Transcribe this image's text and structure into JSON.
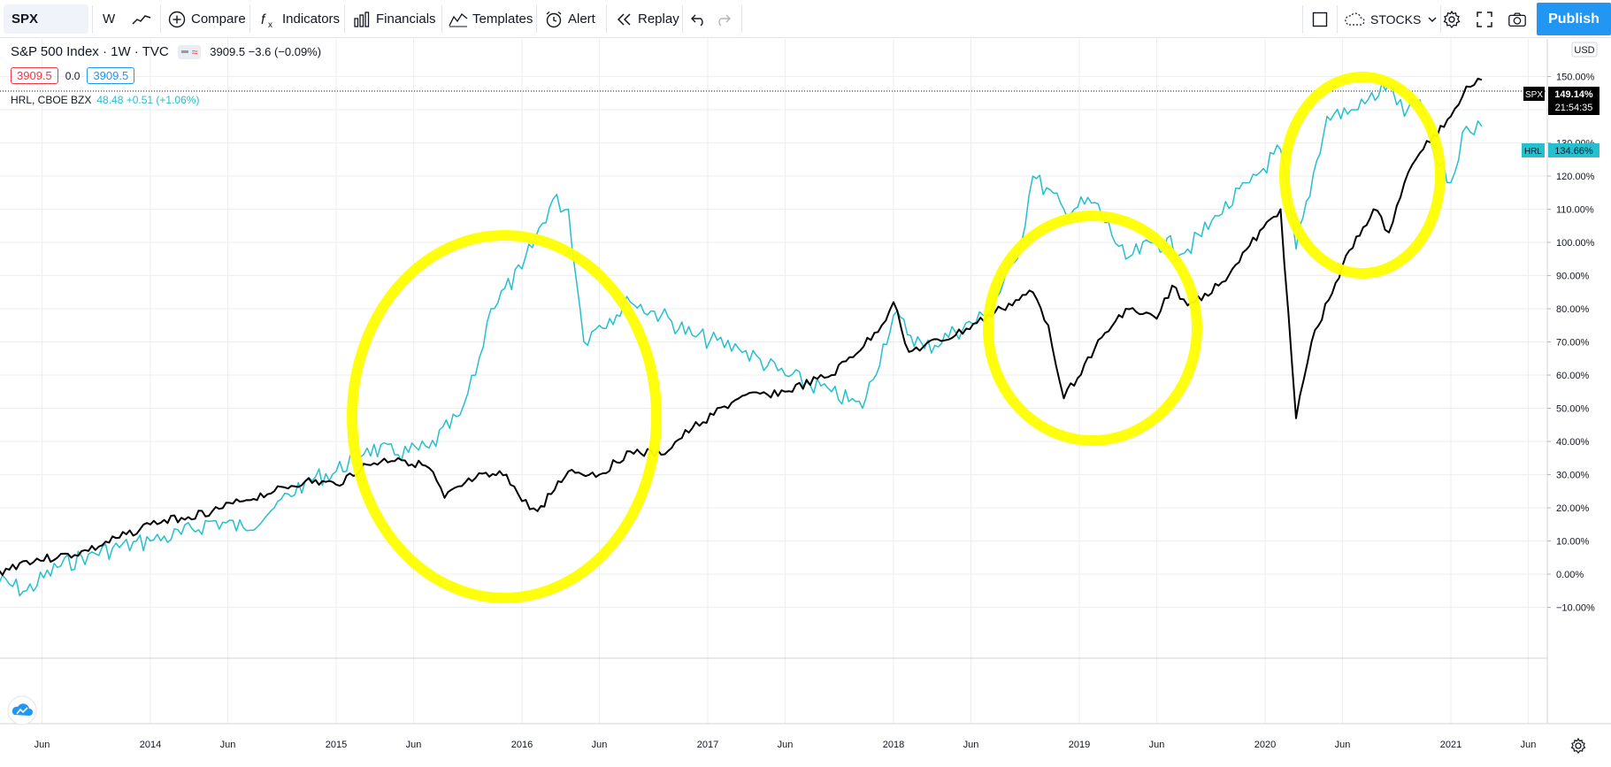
{
  "toolbar": {
    "symbol": "SPX",
    "interval": "W",
    "compare": "Compare",
    "indicators": "Indicators",
    "financials": "Financials",
    "templates": "Templates",
    "alert": "Alert",
    "replay": "Replay",
    "layout_name": "STOCKS",
    "publish": "Publish"
  },
  "legend": {
    "main_title": "S&P 500 Index · 1W · TVC",
    "main_values": "3909.5 −3.6 (−0.09%)",
    "bid": "3909.5",
    "spread": "0.0",
    "ask": "3909.5",
    "compare_title": "HRL, CBOE BZX",
    "compare_values": "48.48 +0.51 (+1.06%)"
  },
  "price_axis": {
    "currency": "USD",
    "labels": [
      "150.00%",
      "140.00%",
      "130.00%",
      "120.00%",
      "110.00%",
      "100.00%",
      "90.00%",
      "80.00%",
      "70.00%",
      "60.00%",
      "50.00%",
      "40.00%",
      "30.00%",
      "20.00%",
      "10.00%",
      "0.00%",
      "−10.00%"
    ],
    "spx_tag": "SPX",
    "spx_value": "149.14%",
    "spx_countdown": "21:54:35",
    "hrl_tag": "HRL",
    "hrl_value": "134.66%"
  },
  "time_axis": {
    "labels": [
      "Jun",
      "2014",
      "Jun",
      "2015",
      "Jun",
      "2016",
      "Jun",
      "2017",
      "Jun",
      "2018",
      "Jun",
      "2019",
      "Jun",
      "2020",
      "Jun",
      "2021",
      "Jun"
    ]
  },
  "colors": {
    "spx": "#000000",
    "hrl": "#25bfce",
    "highlight": "#ffff00",
    "accent": "#2196f3",
    "grid": "#eceef2"
  },
  "icons": {
    "logo": "tradingview-logo-icon",
    "settings": "gear-icon",
    "camera": "camera-icon",
    "fullscreen": "fullscreen-icon",
    "time_axis_settings": "gear-icon"
  },
  "chart_data": {
    "type": "line",
    "x_unit": "week",
    "y_unit": "percent change",
    "ylim": [
      -12,
      152
    ],
    "series": [
      {
        "name": "S&P 500 Index",
        "points": [
          [
            "2013-03",
            0
          ],
          [
            "2013-05",
            4
          ],
          [
            "2013-07",
            5
          ],
          [
            "2013-09",
            7
          ],
          [
            "2013-11",
            11
          ],
          [
            "2014-01",
            15
          ],
          [
            "2014-03",
            17
          ],
          [
            "2014-05",
            19
          ],
          [
            "2014-07",
            22
          ],
          [
            "2014-09",
            25
          ],
          [
            "2014-11",
            28
          ],
          [
            "2015-01",
            27
          ],
          [
            "2015-03",
            33
          ],
          [
            "2015-05",
            35
          ],
          [
            "2015-07",
            32
          ],
          [
            "2015-08",
            23
          ],
          [
            "2015-10",
            29
          ],
          [
            "2015-12",
            30
          ],
          [
            "2016-01",
            22
          ],
          [
            "2016-02",
            19
          ],
          [
            "2016-04",
            31
          ],
          [
            "2016-06",
            30
          ],
          [
            "2016-08",
            37
          ],
          [
            "2016-10",
            36
          ],
          [
            "2016-12",
            44
          ],
          [
            "2017-03",
            53
          ],
          [
            "2017-06",
            55
          ],
          [
            "2017-09",
            60
          ],
          [
            "2017-12",
            73
          ],
          [
            "2018-01",
            82
          ],
          [
            "2018-02",
            67
          ],
          [
            "2018-05",
            72
          ],
          [
            "2018-08",
            80
          ],
          [
            "2018-10",
            85
          ],
          [
            "2018-11",
            75
          ],
          [
            "2018-12",
            53
          ],
          [
            "2019-02",
            68
          ],
          [
            "2019-04",
            80
          ],
          [
            "2019-06",
            77
          ],
          [
            "2019-07",
            87
          ],
          [
            "2019-08",
            81
          ],
          [
            "2019-10",
            87
          ],
          [
            "2019-12",
            99
          ],
          [
            "2020-02",
            110
          ],
          [
            "2020-03",
            47
          ],
          [
            "2020-04",
            70
          ],
          [
            "2020-06",
            93
          ],
          [
            "2020-08",
            110
          ],
          [
            "2020-09",
            103
          ],
          [
            "2020-10",
            118
          ],
          [
            "2020-11",
            127
          ],
          [
            "2021-01",
            138
          ],
          [
            "2021-02",
            147
          ],
          [
            "2021-03",
            149
          ]
        ]
      },
      {
        "name": "HRL",
        "points": [
          [
            "2013-03",
            -2
          ],
          [
            "2013-05",
            -5
          ],
          [
            "2013-07",
            2
          ],
          [
            "2013-09",
            6
          ],
          [
            "2013-11",
            8
          ],
          [
            "2014-01",
            10
          ],
          [
            "2014-03",
            12
          ],
          [
            "2014-05",
            16
          ],
          [
            "2014-07",
            14
          ],
          [
            "2014-09",
            20
          ],
          [
            "2014-11",
            28
          ],
          [
            "2015-01",
            31
          ],
          [
            "2015-03",
            38
          ],
          [
            "2015-05",
            36
          ],
          [
            "2015-07",
            38
          ],
          [
            "2015-09",
            48
          ],
          [
            "2015-10",
            60
          ],
          [
            "2015-11",
            80
          ],
          [
            "2016-01",
            92
          ],
          [
            "2016-03",
            113
          ],
          [
            "2016-04",
            110
          ],
          [
            "2016-05",
            70
          ],
          [
            "2016-06",
            75
          ],
          [
            "2016-08",
            82
          ],
          [
            "2016-10",
            78
          ],
          [
            "2016-12",
            72
          ],
          [
            "2017-03",
            68
          ],
          [
            "2017-06",
            60
          ],
          [
            "2017-09",
            55
          ],
          [
            "2017-11",
            50
          ],
          [
            "2018-01",
            78
          ],
          [
            "2018-03",
            68
          ],
          [
            "2018-05",
            73
          ],
          [
            "2018-07",
            78
          ],
          [
            "2018-09",
            95
          ],
          [
            "2018-10",
            120
          ],
          [
            "2018-12",
            110
          ],
          [
            "2019-02",
            112
          ],
          [
            "2019-04",
            95
          ],
          [
            "2019-06",
            100
          ],
          [
            "2019-08",
            98
          ],
          [
            "2019-10",
            108
          ],
          [
            "2019-12",
            118
          ],
          [
            "2020-02",
            128
          ],
          [
            "2020-03",
            98
          ],
          [
            "2020-05",
            138
          ],
          [
            "2020-07",
            140
          ],
          [
            "2020-09",
            148
          ],
          [
            "2020-10",
            138
          ],
          [
            "2020-11",
            143
          ],
          [
            "2020-12",
            125
          ],
          [
            "2021-01",
            118
          ],
          [
            "2021-02",
            135
          ],
          [
            "2021-03",
            135
          ]
        ]
      }
    ]
  },
  "annotations": [
    {
      "shape": "circle",
      "color": "highlight"
    },
    {
      "shape": "circle",
      "color": "highlight"
    },
    {
      "shape": "circle",
      "color": "highlight"
    }
  ]
}
